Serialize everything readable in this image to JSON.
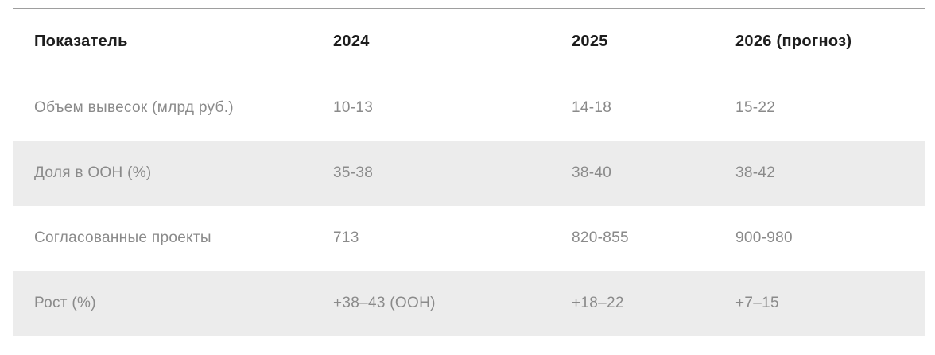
{
  "chart_data": {
    "type": "table",
    "title": "",
    "columns": [
      "Показатель",
      "2024",
      "2025",
      "2026 (прогноз)"
    ],
    "rows": [
      [
        "Объем вывесок (млрд руб.)",
        "10-13",
        "14-18",
        "15-22"
      ],
      [
        "Доля в OOH (%)",
        "35-38",
        "38-40",
        "38-42"
      ],
      [
        "Согласованные проекты",
        "713",
        "820-855",
        "900-980"
      ],
      [
        "Рост (%)",
        "+38–43 (OOH)",
        "+18–22",
        "+7–15"
      ]
    ],
    "layout": {
      "striped_row_indexes": [
        1,
        3
      ],
      "legend": "none",
      "grid": "horizontal-rules-header-only"
    },
    "colors": {
      "background": "#ffffff",
      "header_text": "#1d1d1d",
      "body_text": "#8a8a8a",
      "stripe_background": "#ececec",
      "top_rule": "#9e9e9e",
      "header_rule": "#4f4f4f"
    }
  }
}
